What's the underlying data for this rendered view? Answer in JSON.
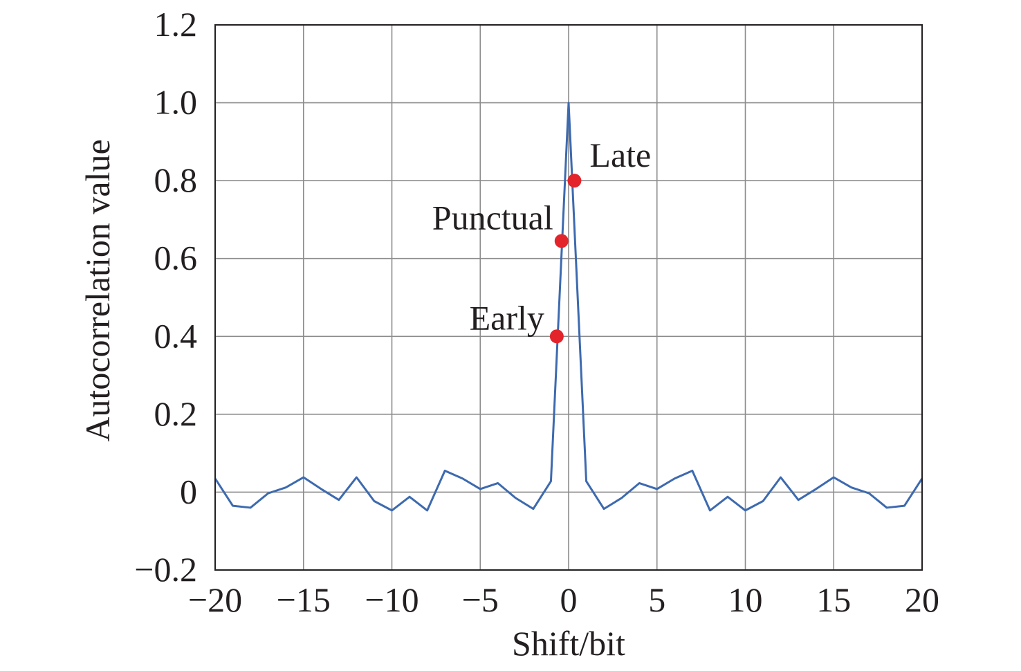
{
  "chart_data": {
    "type": "line",
    "title": "",
    "xlabel": "Shift/bit",
    "ylabel": "Autocorrelation value",
    "xlim": [
      -20,
      20
    ],
    "ylim": [
      -0.2,
      1.2
    ],
    "grid": true,
    "x_ticks": [
      -20,
      -15,
      -10,
      -5,
      0,
      5,
      10,
      15,
      20
    ],
    "x_tick_labels": [
      "−20",
      "−15",
      "−10",
      "−5",
      "0",
      "5",
      "10",
      "15",
      "20"
    ],
    "y_ticks": [
      -0.2,
      0,
      0.2,
      0.4,
      0.6,
      0.8,
      1.0,
      1.2
    ],
    "y_tick_labels": [
      "−0.2",
      "0",
      "0.2",
      "0.4",
      "0.6",
      "0.8",
      "1.0",
      "1.2"
    ],
    "line_color": "#3d6aaf",
    "marker_color": "#e3242b",
    "series": [
      {
        "x": [
          -20,
          -19,
          -18,
          -17,
          -16,
          -15,
          -14,
          -13,
          -12,
          -11,
          -10,
          -9,
          -8,
          -7,
          -6,
          -5,
          -4,
          -3,
          -2,
          -1,
          0,
          1,
          2,
          3,
          4,
          5,
          6,
          7,
          8,
          9,
          10,
          11,
          12,
          13,
          14,
          15,
          16,
          17,
          18,
          19,
          20
        ],
        "y": [
          0.035,
          -0.035,
          -0.04,
          -0.003,
          0.012,
          0.038,
          0.008,
          -0.02,
          0.038,
          -0.023,
          -0.047,
          -0.012,
          -0.047,
          0.055,
          0.035,
          0.008,
          0.023,
          -0.015,
          -0.043,
          0.028,
          1.0,
          0.028,
          -0.043,
          -0.015,
          0.023,
          0.008,
          0.035,
          0.055,
          -0.047,
          -0.012,
          -0.047,
          -0.023,
          0.038,
          -0.02,
          0.008,
          0.038,
          0.012,
          -0.003,
          -0.04,
          -0.035,
          0.035
        ]
      }
    ],
    "annotations": [
      {
        "label": "Early",
        "x": -0.67,
        "y": 0.4
      },
      {
        "label": "Punctual",
        "x": -0.4,
        "y": 0.645
      },
      {
        "label": "Late",
        "x": 0.33,
        "y": 0.8
      }
    ]
  }
}
